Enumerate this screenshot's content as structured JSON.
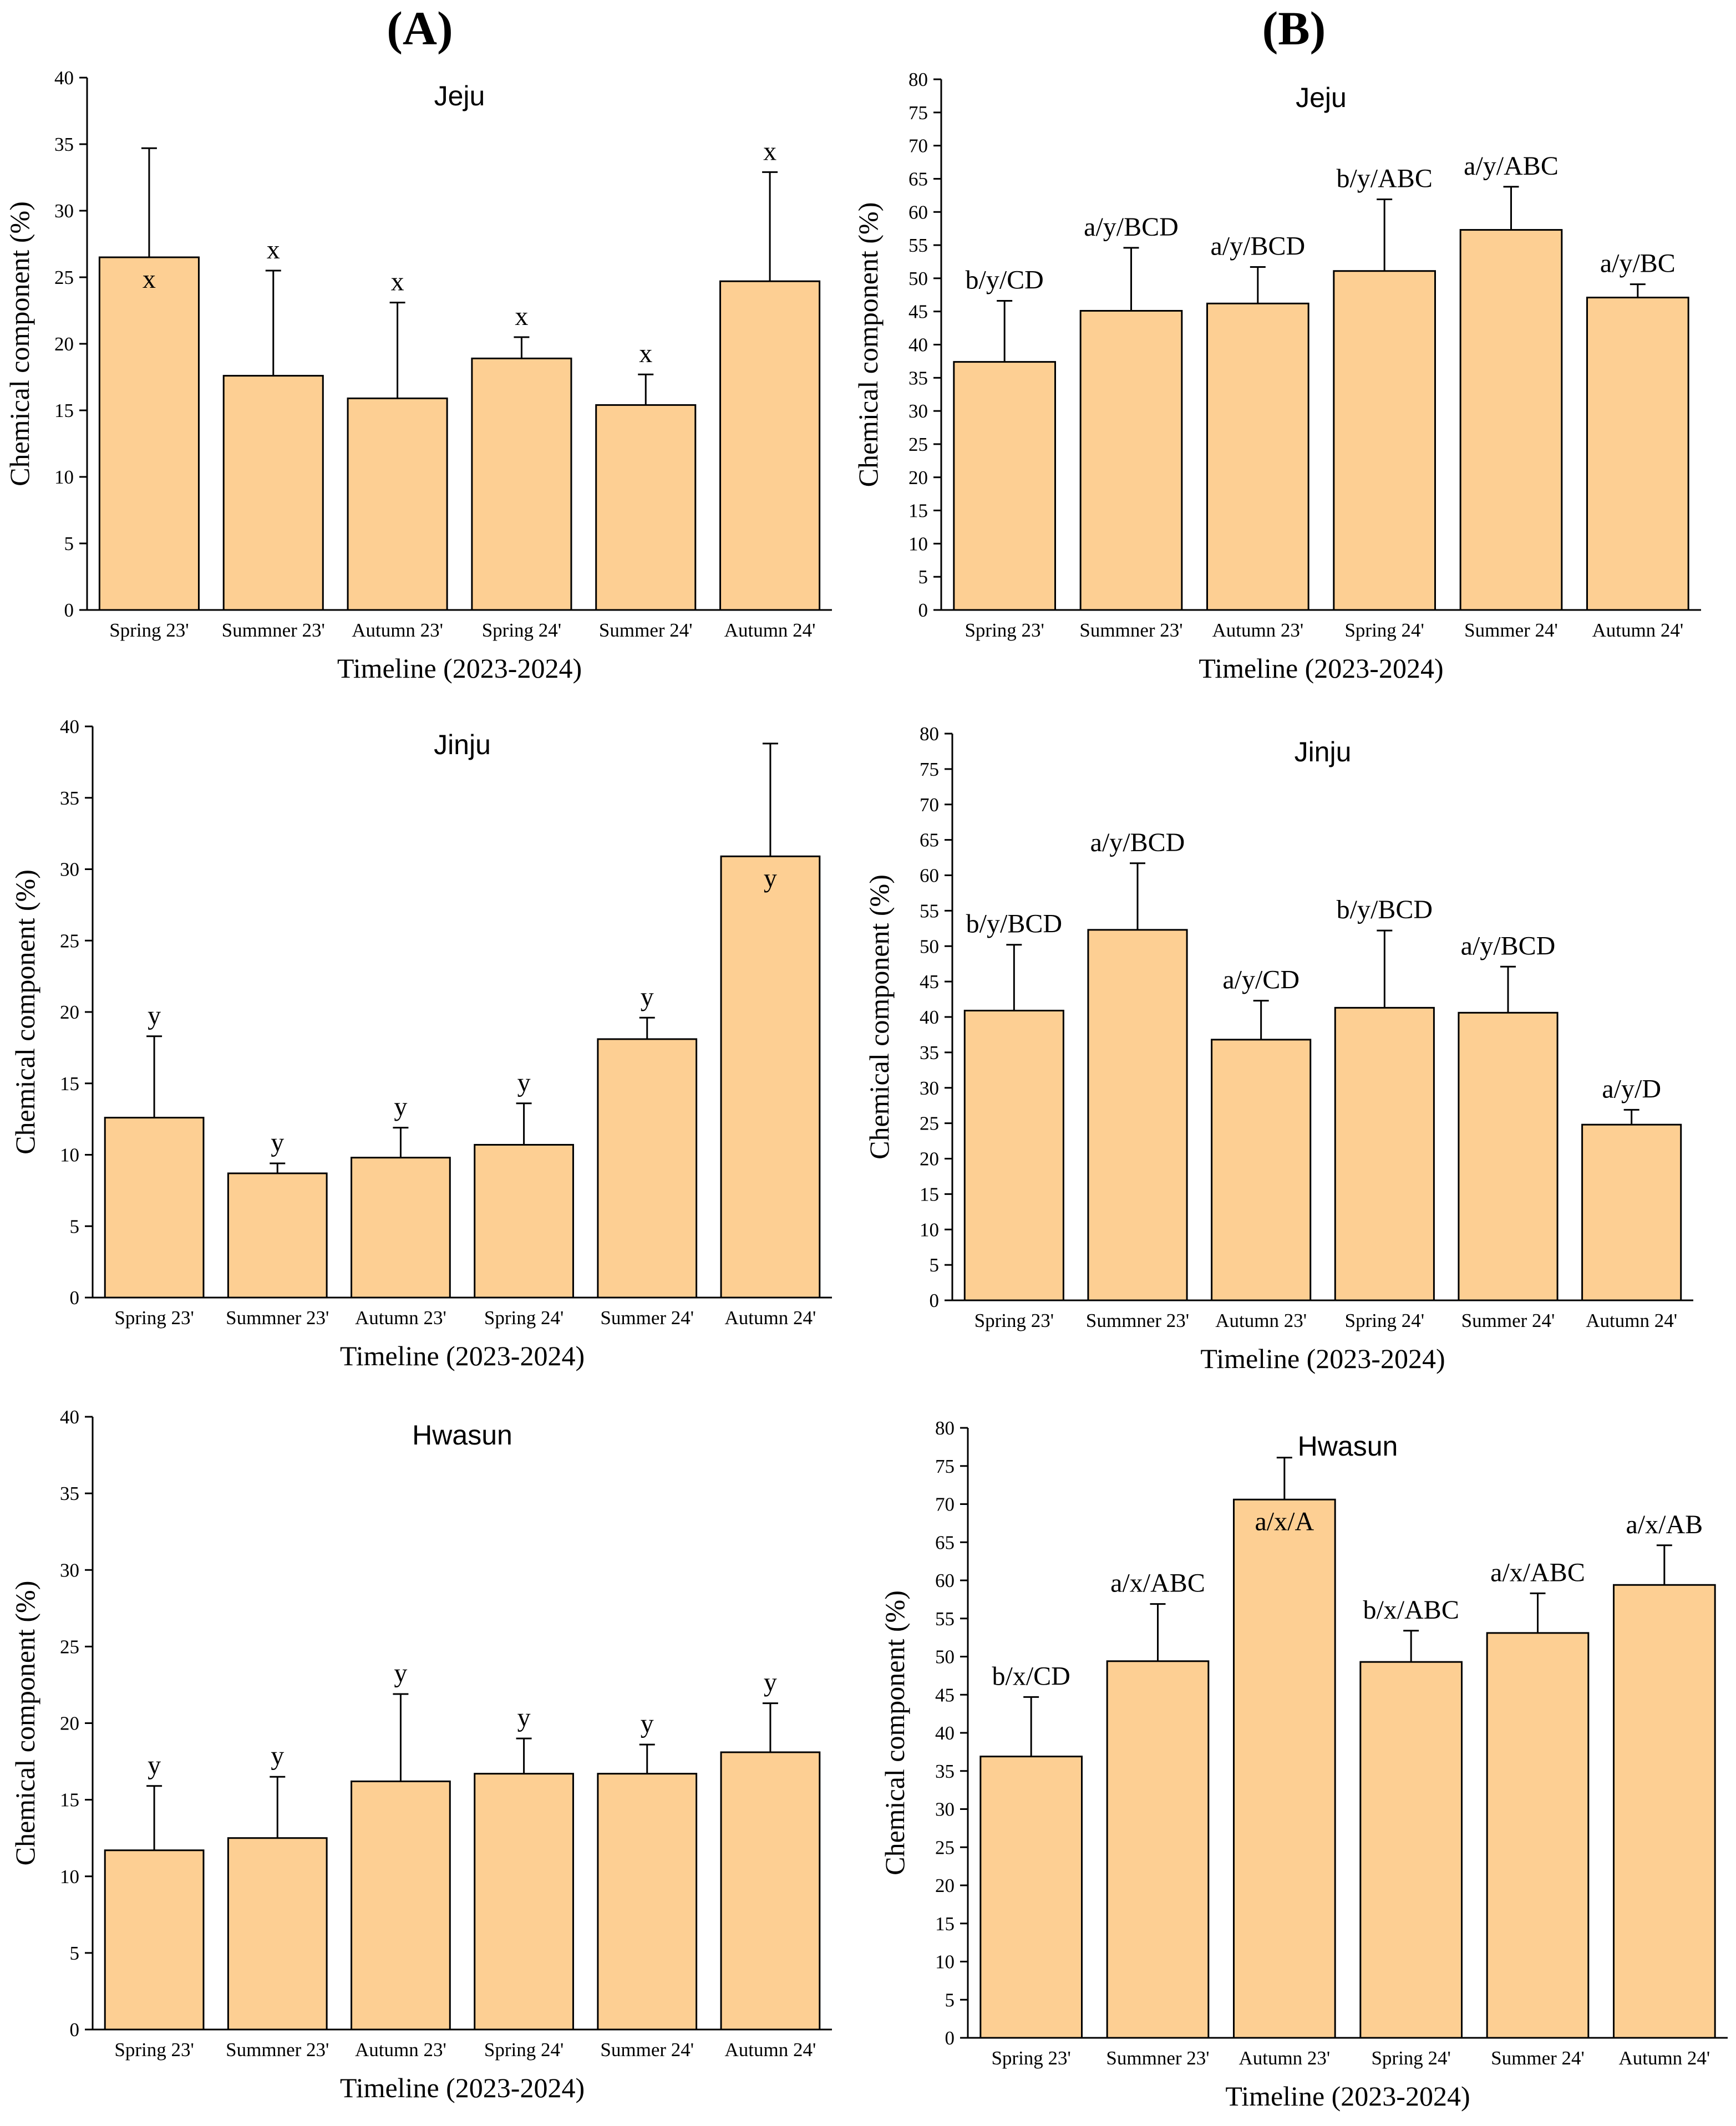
{
  "panels": [
    {
      "label": "(A)",
      "column": 0
    },
    {
      "label": "(B)",
      "column": 1
    }
  ],
  "chart_data": [
    {
      "type": "bar",
      "panel": "A",
      "title": "Jeju",
      "xlabel": "Timeline (2023-2024)",
      "ylabel": "Chemical component (%)",
      "categories": [
        "Spring 23'",
        "Summner 23'",
        "Autumn 23'",
        "Spring 24'",
        "Summer 24'",
        "Autumn 24'"
      ],
      "values": [
        26.5,
        17.6,
        15.9,
        18.9,
        15.4,
        24.7
      ],
      "error_upper": [
        34.7,
        25.5,
        23.1,
        20.5,
        17.7,
        32.9
      ],
      "data_labels": [
        "x",
        "x",
        "x",
        "x",
        "x",
        "x"
      ],
      "ylim": [
        0,
        40
      ],
      "yticks": [
        0,
        5,
        10,
        15,
        20,
        25,
        30,
        35,
        40
      ],
      "grid": false
    },
    {
      "type": "bar",
      "panel": "B",
      "title": "Jeju",
      "xlabel": "Timeline (2023-2024)",
      "ylabel": "Chemical component (%)",
      "categories": [
        "Spring 23'",
        "Summner 23'",
        "Autumn 23'",
        "Spring 24'",
        "Summer 24'",
        "Autumn 24'"
      ],
      "values": [
        37.4,
        45.1,
        46.2,
        51.1,
        57.3,
        47.1
      ],
      "error_upper": [
        46.6,
        54.6,
        51.7,
        61.9,
        63.8,
        49.1
      ],
      "data_labels": [
        "b/y/CD",
        "a/y/BCD",
        "a/y/BCD",
        "b/y/ABC",
        "a/y/ABC",
        "a/y/BC"
      ],
      "ylim": [
        0,
        80
      ],
      "yticks": [
        0,
        5,
        10,
        15,
        20,
        25,
        30,
        35,
        40,
        45,
        50,
        55,
        60,
        65,
        70,
        75,
        80
      ],
      "grid": false
    },
    {
      "type": "bar",
      "panel": "A",
      "title": "Jinju",
      "xlabel": "Timeline (2023-2024)",
      "ylabel": "Chemical component (%)",
      "categories": [
        "Spring 23'",
        "Summner 23'",
        "Autumn 23'",
        "Spring 24'",
        "Summer 24'",
        "Autumn 24'"
      ],
      "values": [
        12.6,
        8.7,
        9.8,
        10.7,
        18.1,
        30.9
      ],
      "error_upper": [
        18.3,
        9.4,
        11.9,
        13.6,
        19.6,
        38.8
      ],
      "data_labels": [
        "y",
        "y",
        "y",
        "y",
        "y",
        "y"
      ],
      "ylim": [
        0,
        40
      ],
      "yticks": [
        0,
        5,
        10,
        15,
        20,
        25,
        30,
        35,
        40
      ],
      "grid": false
    },
    {
      "type": "bar",
      "panel": "B",
      "title": "Jinju",
      "xlabel": "Timeline (2023-2024)",
      "ylabel": "Chemical component (%)",
      "categories": [
        "Spring 23'",
        "Summner 23'",
        "Autumn 23'",
        "Spring 24'",
        "Summer 24'",
        "Autumn 24'"
      ],
      "values": [
        40.9,
        52.3,
        36.8,
        41.3,
        40.6,
        24.8
      ],
      "error_upper": [
        50.2,
        61.7,
        42.3,
        52.2,
        47.1,
        26.9
      ],
      "data_labels": [
        "b/y/BCD",
        "a/y/BCD",
        "a/y/CD",
        "b/y/BCD",
        "a/y/BCD",
        "a/y/D"
      ],
      "ylim": [
        0,
        80
      ],
      "yticks": [
        0,
        5,
        10,
        15,
        20,
        25,
        30,
        35,
        40,
        45,
        50,
        55,
        60,
        65,
        70,
        75,
        80
      ],
      "grid": false
    },
    {
      "type": "bar",
      "panel": "A",
      "title": "Hwasun",
      "xlabel": "Timeline (2023-2024)",
      "ylabel": "Chemical component (%)",
      "categories": [
        "Spring 23'",
        "Summner 23'",
        "Autumn 23'",
        "Spring 24'",
        "Summer 24'",
        "Autumn 24'"
      ],
      "values": [
        11.7,
        12.5,
        16.2,
        16.7,
        16.7,
        18.1
      ],
      "error_upper": [
        15.9,
        16.5,
        21.9,
        19.0,
        18.6,
        21.3
      ],
      "data_labels": [
        "y",
        "y",
        "y",
        "y",
        "y",
        "y"
      ],
      "ylim": [
        0,
        40
      ],
      "yticks": [
        0,
        5,
        10,
        15,
        20,
        25,
        30,
        35,
        40
      ],
      "grid": false
    },
    {
      "type": "bar",
      "panel": "B",
      "title": "Hwasun",
      "xlabel": "Timeline (2023-2024)",
      "ylabel": "Chemical component (%)",
      "categories": [
        "Spring 23'",
        "Summner 23'",
        "Autumn 23'",
        "Spring 24'",
        "Summer 24'",
        "Autumn 24'"
      ],
      "values": [
        36.9,
        49.4,
        70.6,
        49.3,
        53.1,
        59.4
      ],
      "error_upper": [
        44.7,
        56.9,
        76.1,
        53.4,
        58.3,
        64.6
      ],
      "data_labels": [
        "b/x/CD",
        "a/x/ABC",
        "a/x/A",
        "b/x/ABC",
        "a/x/ABC",
        "a/x/AB"
      ],
      "ylim": [
        0,
        80
      ],
      "yticks": [
        0,
        5,
        10,
        15,
        20,
        25,
        30,
        35,
        40,
        45,
        50,
        55,
        60,
        65,
        70,
        75,
        80
      ],
      "grid": false
    }
  ]
}
